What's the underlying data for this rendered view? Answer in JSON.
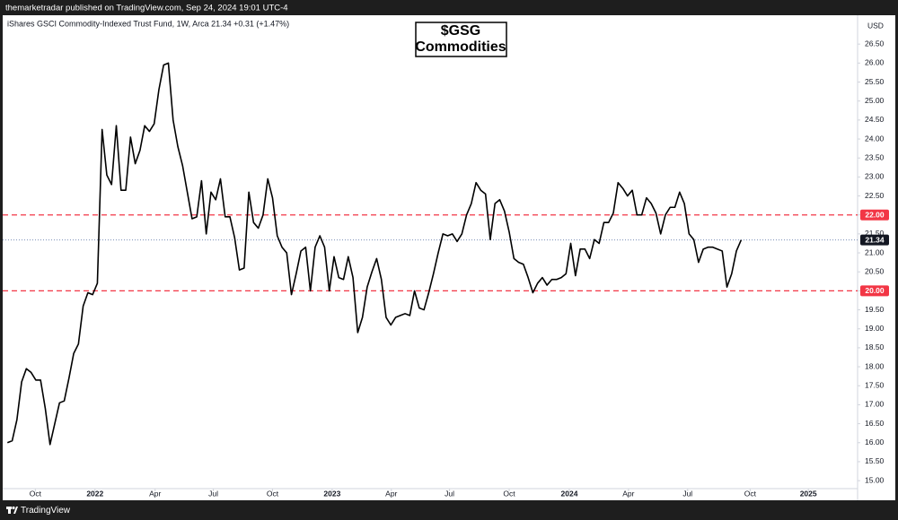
{
  "header": "themarketradar published on TradingView.com, Sep 24, 2024 19:01 UTC-4",
  "footer": "TradingView",
  "chart_data": {
    "type": "line",
    "legend_text": "iShares GSCI Commodity-Indexed Trust Fund, 1W, Arca  21.34  +0.31 (+1.47%)",
    "title": [
      "$GSG",
      "Commodities"
    ],
    "y_unit": "USD",
    "color": "#000000",
    "values": [
      16.0,
      16.05,
      16.6,
      17.6,
      17.95,
      17.85,
      17.65,
      17.65,
      16.9,
      15.95,
      16.5,
      17.05,
      17.1,
      17.7,
      18.35,
      18.6,
      19.6,
      19.95,
      19.9,
      20.2,
      24.25,
      23.05,
      22.8,
      24.35,
      22.65,
      22.65,
      24.05,
      23.35,
      23.7,
      24.35,
      24.2,
      24.4,
      25.3,
      25.95,
      26.0,
      24.5,
      23.8,
      23.3,
      22.6,
      21.9,
      21.95,
      22.9,
      21.5,
      22.6,
      22.4,
      22.95,
      21.95,
      21.95,
      21.4,
      20.55,
      20.6,
      22.6,
      21.8,
      21.65,
      22.0,
      22.95,
      22.45,
      21.45,
      21.15,
      21.0,
      19.9,
      20.45,
      21.05,
      21.15,
      20.0,
      21.15,
      21.45,
      21.15,
      20.0,
      20.9,
      20.35,
      20.3,
      20.9,
      20.35,
      18.9,
      19.3,
      20.1,
      20.5,
      20.85,
      20.3,
      19.3,
      19.1,
      19.3,
      19.35,
      19.4,
      19.35,
      20.0,
      19.55,
      19.5,
      19.95,
      20.45,
      21.0,
      21.5,
      21.45,
      21.5,
      21.3,
      21.5,
      22.0,
      22.3,
      22.85,
      22.65,
      22.55,
      21.35,
      22.3,
      22.4,
      22.1,
      21.55,
      20.85,
      20.75,
      20.7,
      20.35,
      19.95,
      20.2,
      20.35,
      20.15,
      20.3,
      20.3,
      20.35,
      20.45,
      21.25,
      20.4,
      21.1,
      21.1,
      20.85,
      21.35,
      21.25,
      21.8,
      21.8,
      22.05,
      22.85,
      22.7,
      22.5,
      22.65,
      22.0,
      22.0,
      22.45,
      22.3,
      22.05,
      21.5,
      22.0,
      22.2,
      22.2,
      22.6,
      22.3,
      21.5,
      21.35,
      20.75,
      21.1,
      21.15,
      21.15,
      21.1,
      21.05,
      20.1,
      20.45,
      21.05,
      21.34
    ],
    "xlim": [
      -1,
      179.6
    ],
    "xticks": [
      {
        "value": 5.9,
        "label": "Oct"
      },
      {
        "value": 18.5,
        "label": "2022"
      },
      {
        "value": 31.2,
        "label": "Apr"
      },
      {
        "value": 43.5,
        "label": "Jul"
      },
      {
        "value": 56.0,
        "label": "Oct"
      },
      {
        "value": 68.6,
        "label": "2023"
      },
      {
        "value": 81.1,
        "label": "Apr"
      },
      {
        "value": 93.4,
        "label": "Jul"
      },
      {
        "value": 106.0,
        "label": "Oct"
      },
      {
        "value": 118.7,
        "label": "2024"
      },
      {
        "value": 131.2,
        "label": "Apr"
      },
      {
        "value": 143.7,
        "label": "Jul"
      },
      {
        "value": 156.9,
        "label": "Oct"
      },
      {
        "value": 169.2,
        "label": "2025"
      }
    ],
    "ylim": [
      14.79,
      27.26
    ],
    "yticks": [
      {
        "value": 15,
        "label": "15.00"
      },
      {
        "value": 15.5,
        "label": "15.50"
      },
      {
        "value": 16,
        "label": "16.00"
      },
      {
        "value": 16.5,
        "label": "16.50"
      },
      {
        "value": 17,
        "label": "17.00"
      },
      {
        "value": 17.5,
        "label": "17.50"
      },
      {
        "value": 18,
        "label": "18.00"
      },
      {
        "value": 18.5,
        "label": "18.50"
      },
      {
        "value": 19,
        "label": "19.00"
      },
      {
        "value": 19.5,
        "label": "19.50"
      },
      {
        "value": 20,
        "label": "20.00"
      },
      {
        "value": 20.5,
        "label": "20.50"
      },
      {
        "value": 21,
        "label": "21.00"
      },
      {
        "value": 21.5,
        "label": "21.50"
      },
      {
        "value": 22,
        "label": "22.00"
      },
      {
        "value": 22.5,
        "label": "22.50"
      },
      {
        "value": 23,
        "label": "23.00"
      },
      {
        "value": 23.5,
        "label": "23.50"
      },
      {
        "value": 24,
        "label": "24.00"
      },
      {
        "value": 24.5,
        "label": "24.50"
      },
      {
        "value": 25,
        "label": "25.00"
      },
      {
        "value": 25.5,
        "label": "25.50"
      },
      {
        "value": 26,
        "label": "26.00"
      },
      {
        "value": 26.5,
        "label": "26.50"
      }
    ],
    "levels": [
      {
        "value": 22,
        "label": "22.00",
        "color": "#f23645"
      },
      {
        "value": 20,
        "label": "20.00",
        "color": "#f23645"
      }
    ],
    "last_price": {
      "value": 21.34,
      "label": "21.34",
      "color": "#131722"
    },
    "grid": false
  }
}
